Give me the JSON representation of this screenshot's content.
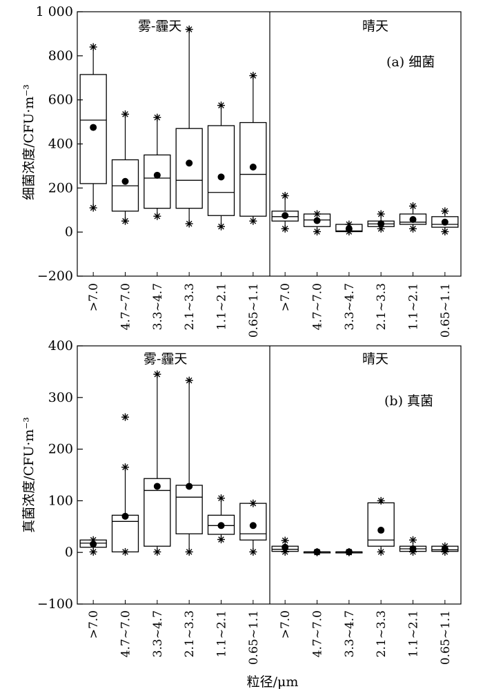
{
  "xlabel": "粒径/μm",
  "chart_data": [
    {
      "type": "box",
      "panel_label": "(a) 细菌",
      "ylabel": "细菌浓度/CFU·m⁻³",
      "ylim": [
        -200,
        1000
      ],
      "yticks": [
        -200,
        0,
        200,
        400,
        600,
        800,
        1000
      ],
      "ytick_labels": [
        "−200",
        "0",
        "200",
        "400",
        "600",
        "800",
        "1 000"
      ],
      "groups": [
        {
          "name": "雾-霾天",
          "categories": [
            ">7.0",
            "4.7~7.0",
            "3.3~4.7",
            "2.1~3.3",
            "1.1~2.1",
            "0.65~1.1"
          ],
          "boxes": [
            {
              "q1": 220,
              "median": 508,
              "q3": 715,
              "whisker_low": 110,
              "whisker_high": 840,
              "mean": 475
            },
            {
              "q1": 95,
              "median": 210,
              "q3": 328,
              "whisker_low": 50,
              "whisker_high": 535,
              "mean": 230
            },
            {
              "q1": 108,
              "median": 245,
              "q3": 350,
              "whisker_low": 72,
              "whisker_high": 520,
              "mean": 258
            },
            {
              "q1": 108,
              "median": 235,
              "q3": 470,
              "whisker_low": 38,
              "whisker_high": 920,
              "mean": 313
            },
            {
              "q1": 75,
              "median": 180,
              "q3": 483,
              "whisker_low": 25,
              "whisker_high": 575,
              "mean": 250
            },
            {
              "q1": 72,
              "median": 262,
              "q3": 497,
              "whisker_low": 50,
              "whisker_high": 710,
              "mean": 295
            }
          ]
        },
        {
          "name": "晴天",
          "categories": [
            ">7.0",
            "4.7~7.0",
            "3.3~4.7",
            "2.1~3.3",
            "1.1~2.1",
            "0.65~1.1"
          ],
          "boxes": [
            {
              "q1": 50,
              "median": 70,
              "q3": 95,
              "whisker_low": 15,
              "whisker_high": 165,
              "mean": 75
            },
            {
              "q1": 25,
              "median": 55,
              "q3": 82,
              "whisker_low": 2,
              "whisker_high": 82,
              "mean": 52
            },
            {
              "q1": 2,
              "median": 5,
              "q3": 35,
              "whisker_low": 2,
              "whisker_high": 35,
              "mean": 15
            },
            {
              "q1": 25,
              "median": 37,
              "q3": 50,
              "whisker_low": 15,
              "whisker_high": 82,
              "mean": 38
            },
            {
              "q1": 35,
              "median": 45,
              "q3": 82,
              "whisker_low": 15,
              "whisker_high": 118,
              "mean": 57
            },
            {
              "q1": 22,
              "median": 35,
              "q3": 70,
              "whisker_low": 2,
              "whisker_high": 95,
              "mean": 45
            }
          ]
        }
      ]
    },
    {
      "type": "box",
      "panel_label": "(b) 真菌",
      "ylabel": "真菌浓度/CFU·m⁻³",
      "ylim": [
        -100,
        400
      ],
      "yticks": [
        -100,
        0,
        100,
        200,
        300,
        400
      ],
      "ytick_labels": [
        "−100",
        "0",
        "100",
        "200",
        "300",
        "400"
      ],
      "groups": [
        {
          "name": "雾-霾天",
          "categories": [
            ">7.0",
            "4.7~7.0",
            "3.3~4.7",
            "2.1~3.3",
            "1.1~2.1",
            "0.65~1.1"
          ],
          "boxes": [
            {
              "q1": 10,
              "median": 18,
              "q3": 24,
              "whisker_low": 1,
              "whisker_high": 24,
              "mean": 16
            },
            {
              "q1": 1,
              "median": 60,
              "q3": 72,
              "whisker_low": 1,
              "whisker_high": 165,
              "mean": 70,
              "outliers": [
                262
              ]
            },
            {
              "q1": 12,
              "median": 120,
              "q3": 143,
              "whisker_low": 1,
              "whisker_high": 345,
              "mean": 128
            },
            {
              "q1": 36,
              "median": 107,
              "q3": 130,
              "whisker_low": 1,
              "whisker_high": 333,
              "mean": 128
            },
            {
              "q1": 35,
              "median": 52,
              "q3": 72,
              "whisker_low": 25,
              "whisker_high": 105,
              "mean": 52
            },
            {
              "q1": 24,
              "median": 36,
              "q3": 95,
              "whisker_low": 1,
              "whisker_high": 95,
              "mean": 52
            }
          ]
        },
        {
          "name": "晴天",
          "categories": [
            ">7.0",
            "4.7~7.0",
            "3.3~4.7",
            "2.1~3.3",
            "1.1~2.1",
            "0.65~1.1"
          ],
          "boxes": [
            {
              "q1": 2,
              "median": 6,
              "q3": 12,
              "whisker_low": 1,
              "whisker_high": 23,
              "mean": 10
            },
            {
              "q1": 0,
              "median": 1,
              "q3": 1,
              "whisker_low": 0,
              "whisker_high": 1,
              "mean": 1
            },
            {
              "q1": 0,
              "median": 1,
              "q3": 1,
              "whisker_low": 0,
              "whisker_high": 1,
              "mean": 1
            },
            {
              "q1": 12,
              "median": 24,
              "q3": 96,
              "whisker_low": 1,
              "whisker_high": 100,
              "mean": 43
            },
            {
              "q1": 2,
              "median": 7,
              "q3": 12,
              "whisker_low": 1,
              "whisker_high": 24,
              "mean": 7
            },
            {
              "q1": 2,
              "median": 5,
              "q3": 12,
              "whisker_low": 1,
              "whisker_high": 12,
              "mean": 7
            }
          ]
        }
      ]
    }
  ]
}
